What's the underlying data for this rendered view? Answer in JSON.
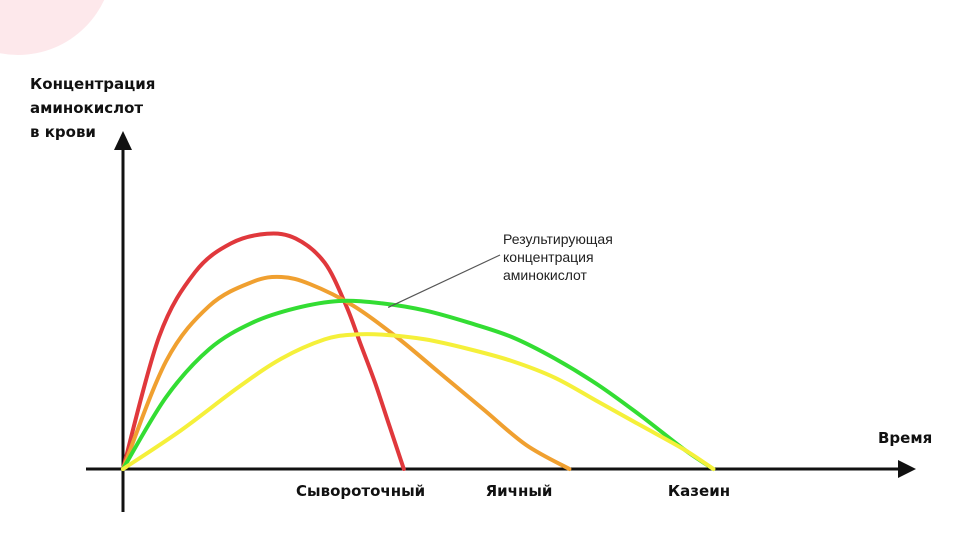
{
  "chart_data": {
    "type": "line",
    "title": "",
    "ylabel_lines": [
      "Концентрация",
      "аминокислот",
      "в крови"
    ],
    "xlabel": "Время",
    "categories": [
      "Сывороточный",
      "Яичный",
      "Казеин"
    ],
    "legend": "none",
    "grid": false,
    "annotation": {
      "lines": [
        "Результирующая",
        "концентрация",
        "аминокислот"
      ],
      "target_series": "green"
    },
    "xlim": [
      0,
      100
    ],
    "ylim": [
      0,
      100
    ],
    "series": [
      {
        "color": "#e0383c",
        "x": [
          0,
          5,
          10,
          15,
          20,
          24,
          28,
          31,
          33,
          35,
          37,
          39
        ],
        "y": [
          0,
          55,
          82,
          94,
          98,
          96,
          86,
          68,
          52,
          36,
          18,
          0
        ]
      },
      {
        "color": "#f0a030",
        "x": [
          0,
          6,
          12,
          18,
          22,
          26,
          32,
          38,
          44,
          50,
          56,
          62
        ],
        "y": [
          0,
          45,
          68,
          78,
          80,
          77,
          68,
          55,
          40,
          25,
          10,
          0
        ]
      },
      {
        "color": "#33dd33",
        "x": [
          0,
          6,
          12,
          18,
          24,
          30,
          36,
          42,
          48,
          54,
          60,
          66,
          72,
          78,
          82
        ],
        "y": [
          0,
          30,
          50,
          61,
          67,
          70,
          69,
          66,
          61,
          55,
          46,
          35,
          22,
          8,
          0
        ]
      },
      {
        "color": "#f5f03a",
        "x": [
          0,
          8,
          16,
          22,
          28,
          32,
          36,
          42,
          48,
          54,
          60,
          66,
          72,
          78,
          82
        ],
        "y": [
          0,
          16,
          34,
          46,
          54,
          56,
          56,
          54,
          50,
          45,
          38,
          28,
          18,
          8,
          0
        ]
      }
    ],
    "category_x": [
      33,
      55,
      80
    ]
  },
  "colors": {
    "axis": "#111111",
    "pointer": "#555555",
    "corner_blob": "#fbe5e8"
  }
}
